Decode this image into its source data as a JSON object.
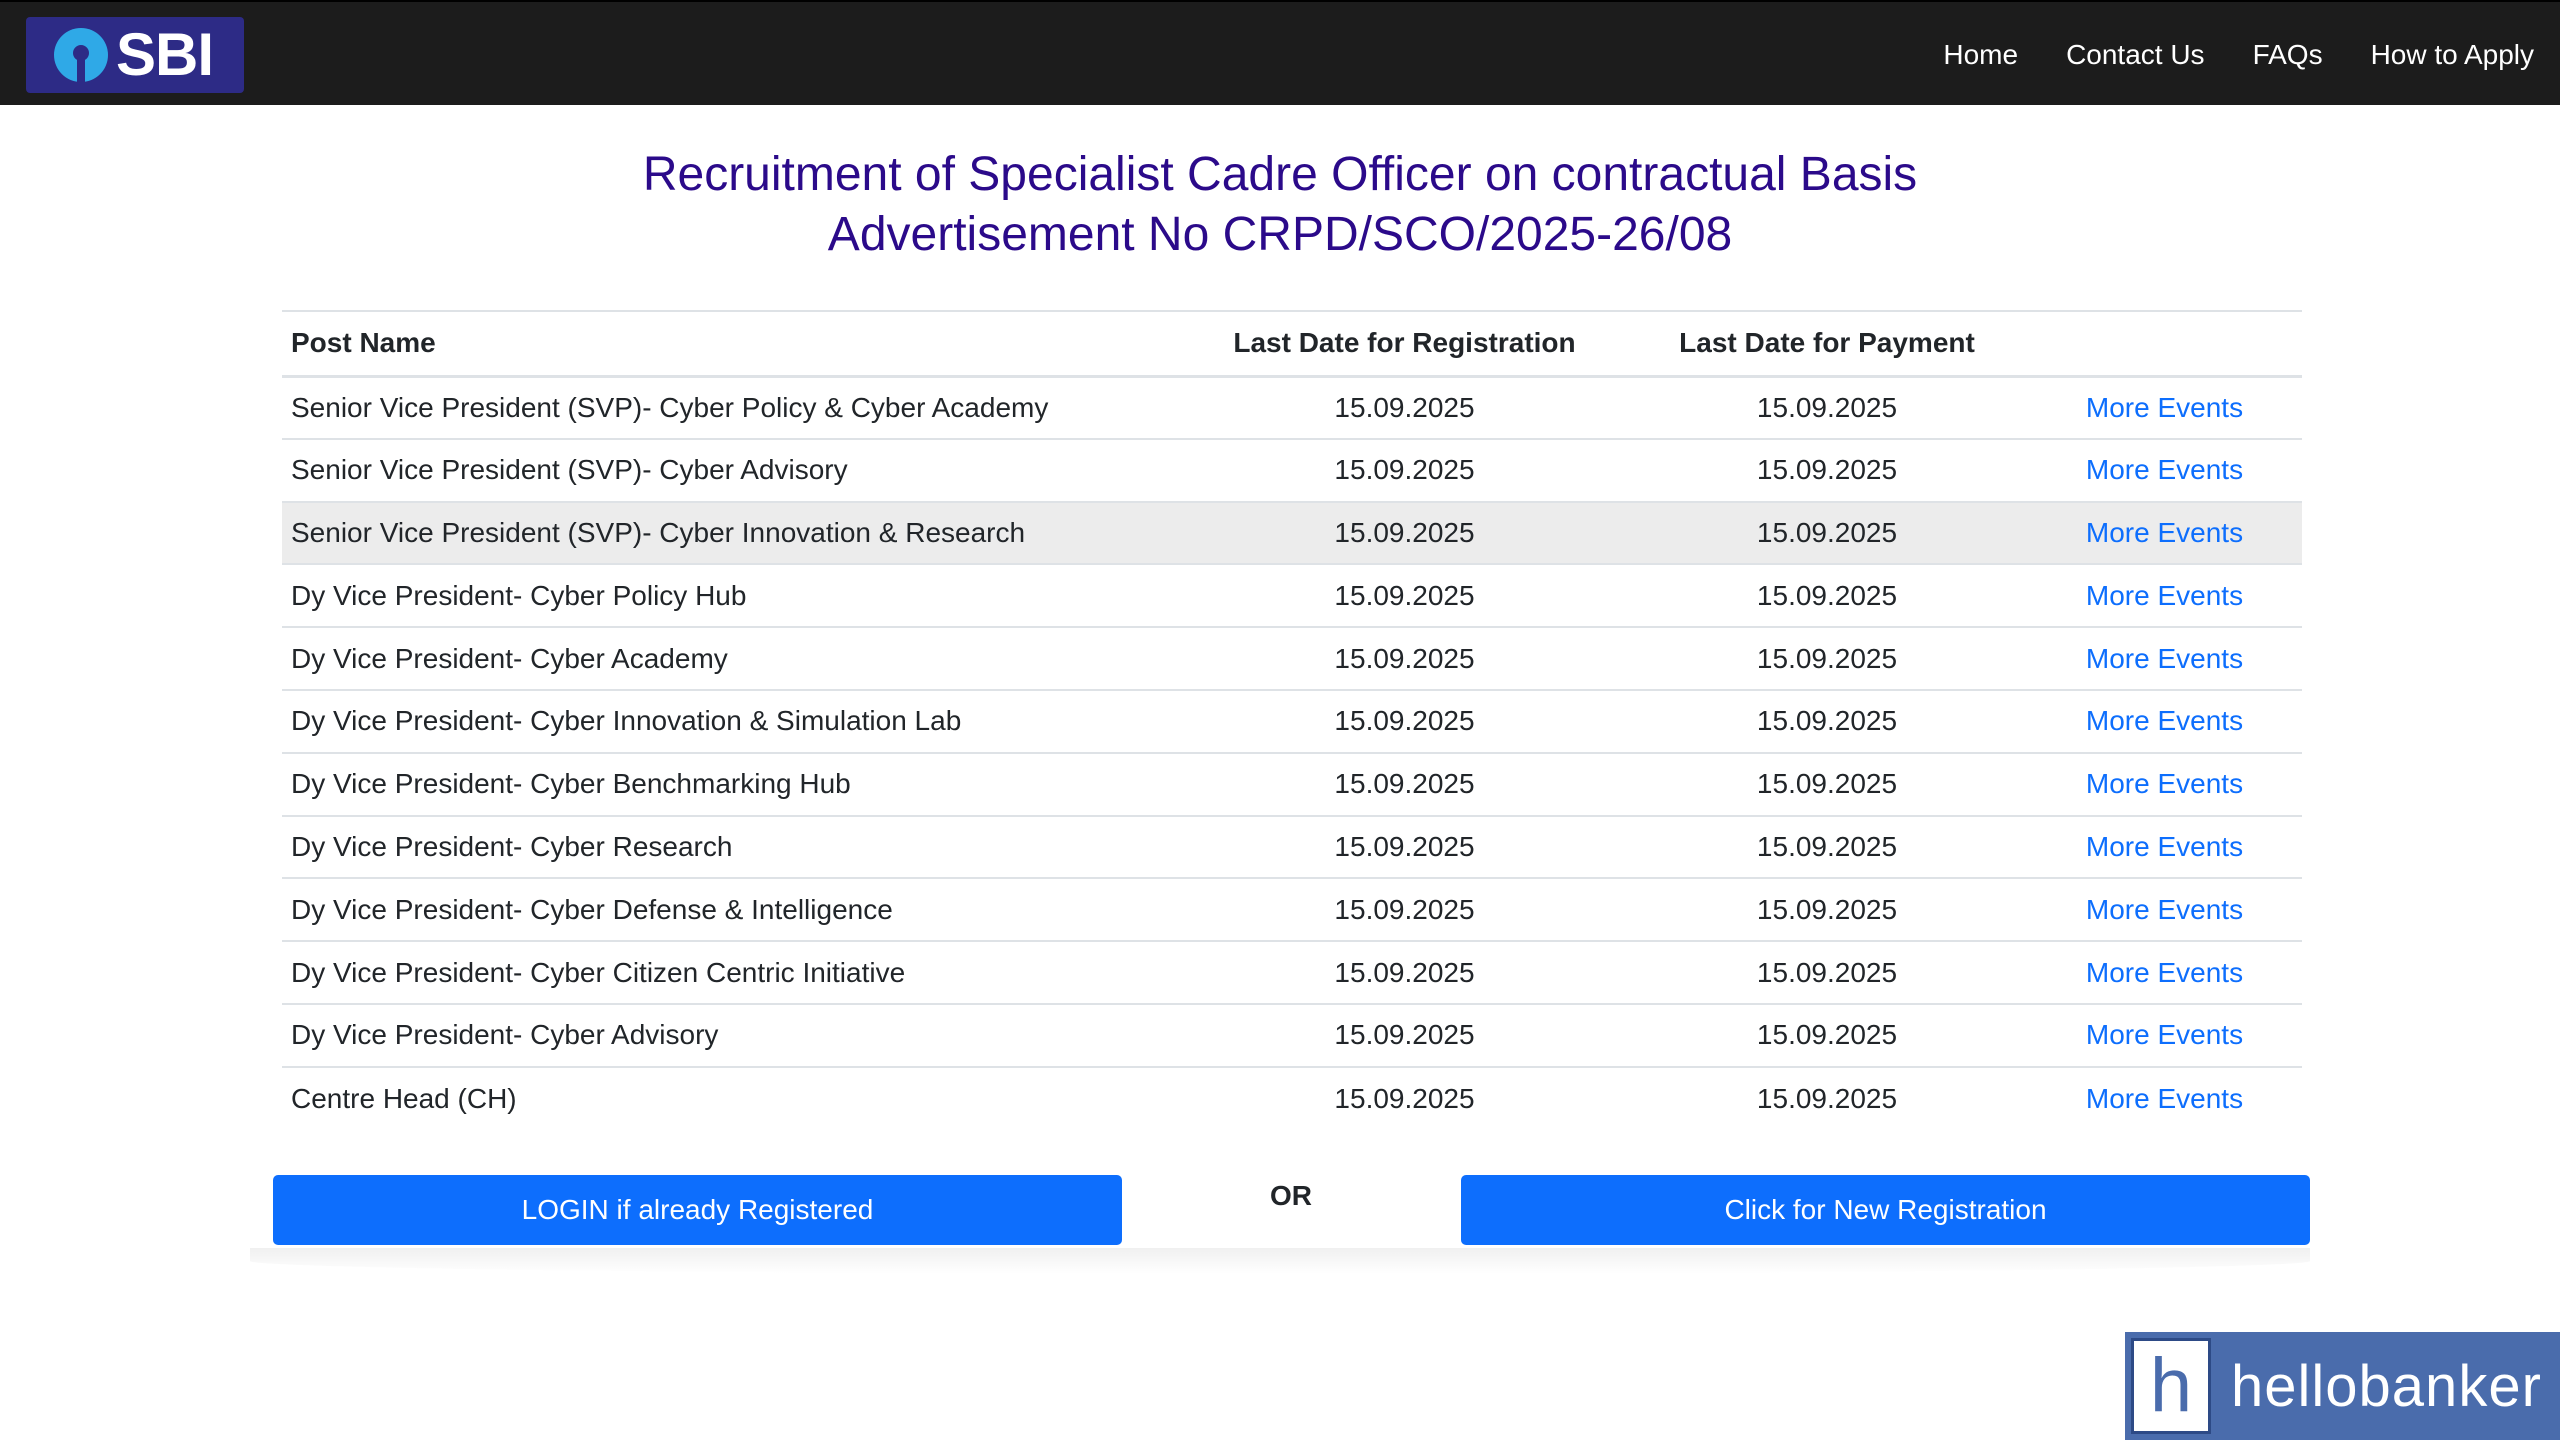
{
  "header": {
    "logo_text": "SBI",
    "nav": [
      "Home",
      "Contact Us",
      "FAQs",
      "How to Apply"
    ]
  },
  "title": {
    "line1": "Recruitment of Specialist Cadre Officer on contractual Basis",
    "line2": "Advertisement No CRPD/SCO/2025-26/08"
  },
  "table": {
    "headers": [
      "Post Name",
      "Last Date for Registration",
      "Last Date for Payment",
      ""
    ],
    "rows": [
      {
        "post": "Senior Vice President (SVP)- Cyber Policy & Cyber Academy",
        "reg": "15.09.2025",
        "pay": "15.09.2025",
        "link": "More Events"
      },
      {
        "post": "Senior Vice President (SVP)- Cyber Advisory",
        "reg": "15.09.2025",
        "pay": "15.09.2025",
        "link": "More Events"
      },
      {
        "post": "Senior Vice President (SVP)- Cyber Innovation & Research",
        "reg": "15.09.2025",
        "pay": "15.09.2025",
        "link": "More Events"
      },
      {
        "post": "Dy Vice President- Cyber Policy Hub",
        "reg": "15.09.2025",
        "pay": "15.09.2025",
        "link": "More Events"
      },
      {
        "post": "Dy Vice President- Cyber Academy",
        "reg": "15.09.2025",
        "pay": "15.09.2025",
        "link": "More Events"
      },
      {
        "post": "Dy Vice President- Cyber Innovation & Simulation Lab",
        "reg": "15.09.2025",
        "pay": "15.09.2025",
        "link": "More Events"
      },
      {
        "post": "Dy Vice President- Cyber Benchmarking Hub",
        "reg": "15.09.2025",
        "pay": "15.09.2025",
        "link": "More Events"
      },
      {
        "post": "Dy Vice President- Cyber Research",
        "reg": "15.09.2025",
        "pay": "15.09.2025",
        "link": "More Events"
      },
      {
        "post": "Dy Vice President- Cyber Defense & Intelligence",
        "reg": "15.09.2025",
        "pay": "15.09.2025",
        "link": "More Events"
      },
      {
        "post": "Dy Vice President- Cyber Citizen Centric Initiative",
        "reg": "15.09.2025",
        "pay": "15.09.2025",
        "link": "More Events"
      },
      {
        "post": "Dy Vice President- Cyber Advisory",
        "reg": "15.09.2025",
        "pay": "15.09.2025",
        "link": "More Events"
      },
      {
        "post": "Centre Head (CH)",
        "reg": "15.09.2025",
        "pay": "15.09.2025",
        "link": "More Events"
      }
    ]
  },
  "actions": {
    "login": "LOGIN if already Registered",
    "or": "OR",
    "register": "Click for New Registration"
  },
  "watermark": {
    "letter": "h",
    "text": "hellobanker"
  }
}
